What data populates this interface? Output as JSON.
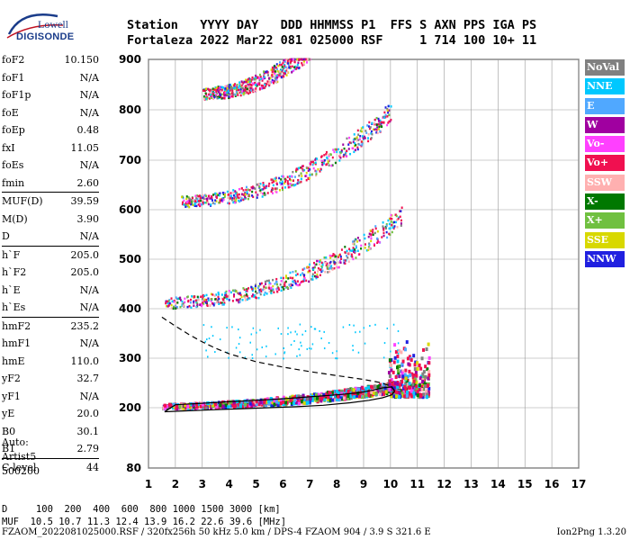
{
  "logo": {
    "top": "Lowell",
    "bottom": "DIGISONDE"
  },
  "header": {
    "line1": "Station   YYYY DAY   DDD HHMMSS P1  FFS S AXN PPS IGA PS",
    "line2": "Fortaleza 2022 Mar22 081 025000 RSF     1 714 100 10+ 11"
  },
  "params": [
    {
      "label": "foF2",
      "value": "10.150"
    },
    {
      "label": "foF1",
      "value": "N/A"
    },
    {
      "label": "foF1p",
      "value": "N/A"
    },
    {
      "label": "foE",
      "value": "N/A"
    },
    {
      "label": "foEp",
      "value": "0.48"
    },
    {
      "label": "fxI",
      "value": "11.05"
    },
    {
      "label": "foEs",
      "value": "N/A"
    },
    {
      "label": "fmin",
      "value": "2.60"
    },
    {
      "label": "MUF(D)",
      "value": "39.59"
    },
    {
      "label": "M(D)",
      "value": "3.90"
    },
    {
      "label": "D",
      "value": "N/A"
    },
    {
      "label": "h`F",
      "value": "205.0"
    },
    {
      "label": "h`F2",
      "value": "205.0"
    },
    {
      "label": "h`E",
      "value": "N/A"
    },
    {
      "label": "h`Es",
      "value": "N/A"
    },
    {
      "label": "hmF2",
      "value": "235.2"
    },
    {
      "label": "hmF1",
      "value": "N/A"
    },
    {
      "label": "hmE",
      "value": "110.0"
    },
    {
      "label": "yF2",
      "value": "32.7"
    },
    {
      "label": "yF1",
      "value": "N/A"
    },
    {
      "label": "yE",
      "value": "20.0"
    },
    {
      "label": "B0",
      "value": "30.1"
    },
    {
      "label": "B1",
      "value": "2.79"
    },
    {
      "label": "C-level",
      "value": "44"
    }
  ],
  "auto": {
    "line1": "Auto:",
    "line2": "Artist5",
    "line3": "500200"
  },
  "legend": [
    {
      "label": "NoVal",
      "color": "#808080"
    },
    {
      "label": "NNE",
      "color": "#00c8ff"
    },
    {
      "label": "E",
      "color": "#50a8ff"
    },
    {
      "label": "W",
      "color": "#a000a0"
    },
    {
      "label": "Vo-",
      "color": "#ff40ff"
    },
    {
      "label": "Vo+",
      "color": "#f01050"
    },
    {
      "label": "SSW",
      "color": "#ffb0b0"
    },
    {
      "label": "X-",
      "color": "#007800"
    },
    {
      "label": "X+",
      "color": "#70c040"
    },
    {
      "label": "SSE",
      "color": "#d8d800"
    },
    {
      "label": "NNW",
      "color": "#2020e0"
    }
  ],
  "footer": {
    "line1": "D     100  200  400  600  800 1000 1500 3000 [km]",
    "line2": "MUF  10.5 10.7 11.3 12.4 13.9 16.2 22.6 39.6 [MHz]",
    "line3": "FZAOM_2022081025000.RSF / 320fx256h 50 kHz 5.0 km / DPS-4 FZAOM 904 / 3.9 S 321.6 E",
    "version": "Ion2Png 1.3.20"
  },
  "chart_data": {
    "type": "scatter",
    "xlim": [
      1,
      17
    ],
    "ylim": [
      80,
      900
    ],
    "x_ticks": [
      "1",
      "2",
      "3",
      "4",
      "5",
      "6",
      "7",
      "8",
      "9",
      "10",
      "11",
      "12",
      "13",
      "14",
      "15",
      "16",
      "17"
    ],
    "y_ticks": [
      "80",
      "200",
      "300",
      "400",
      "500",
      "600",
      "700",
      "800",
      "900"
    ],
    "y_tick_values": [
      80,
      200,
      300,
      400,
      500,
      600,
      700,
      800,
      900
    ],
    "grid": true,
    "series": [
      {
        "color": "#000000",
        "style": "solid",
        "x": [
          1.6,
          2.5,
          3.5,
          4.5,
          5.5,
          6.5,
          7.5,
          8.5,
          9.2,
          9.7,
          10.05,
          10.15,
          10.05,
          9.7,
          9.3,
          8.8,
          8.0,
          7.0,
          6.0,
          5.0,
          4.0,
          3.0,
          2.0,
          1.6
        ],
        "y": [
          192,
          194,
          196,
          198,
          200,
          202,
          205,
          210,
          215,
          220,
          226,
          233,
          242,
          240,
          235,
          230,
          226,
          222,
          218,
          215,
          212,
          209,
          206,
          192
        ]
      },
      {
        "color": "#000000",
        "style": "dashed",
        "x": [
          1.5,
          2.0,
          2.5,
          3.0,
          3.5,
          4.0,
          5.0,
          6.0,
          7.0,
          8.0,
          9.0,
          9.6,
          10.0,
          10.15
        ],
        "y": [
          383,
          365,
          348,
          333,
          320,
          309,
          293,
          282,
          273,
          265,
          257,
          251,
          244,
          235
        ]
      }
    ],
    "scatter_bands": [
      {
        "x": [
          1.5,
          10.3
        ],
        "y": [
          198,
          232
        ],
        "main": true
      },
      {
        "x": [
          1.6,
          10.4
        ],
        "y": [
          400,
          565
        ]
      },
      {
        "x": [
          2.2,
          10.0
        ],
        "y": [
          605,
          775
        ]
      },
      {
        "x": [
          3.0,
          7.0
        ],
        "y": [
          820,
          900
        ]
      }
    ]
  }
}
